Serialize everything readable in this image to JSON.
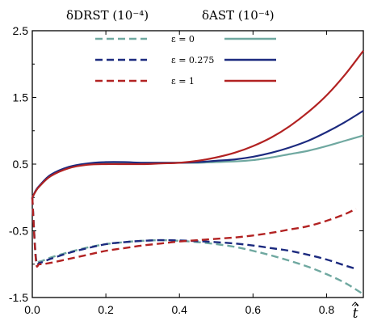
{
  "chart_data": {
    "type": "line",
    "title": "",
    "column_headers": {
      "dashed": "δDRST (10⁻⁴)",
      "solid": "δAST (10⁻⁴)"
    },
    "xlabel": "t̂",
    "ylabel": "",
    "xlim": [
      0.0,
      0.9
    ],
    "ylim": [
      -1.5,
      2.5
    ],
    "x_ticks": [
      "0.0",
      "0.2",
      "0.4",
      "0.6",
      "0.8"
    ],
    "y_ticks": [
      "2.5",
      "1.5",
      "0.5",
      "-0.5",
      "-1.5"
    ],
    "grid": false,
    "legend_position": "top-center",
    "legend": [
      {
        "label": "ε = 0",
        "color": "#6fa8a0"
      },
      {
        "label": "ε = 0.275",
        "color": "#1c2a7f"
      },
      {
        "label": "ε = 1",
        "color": "#b22222"
      }
    ],
    "series": [
      {
        "name": "δDRST ε = 0",
        "style": "dashed",
        "color": "#6fa8a0",
        "x": [
          0.0,
          0.01,
          0.02,
          0.05,
          0.1,
          0.15,
          0.2,
          0.25,
          0.3,
          0.35,
          0.4,
          0.45,
          0.5,
          0.55,
          0.6,
          0.65,
          0.7,
          0.75,
          0.8,
          0.85,
          0.9
        ],
        "y": [
          0.0,
          -0.9,
          -0.96,
          -0.9,
          -0.82,
          -0.75,
          -0.7,
          -0.67,
          -0.65,
          -0.64,
          -0.65,
          -0.67,
          -0.7,
          -0.74,
          -0.8,
          -0.87,
          -0.95,
          -1.04,
          -1.15,
          -1.28,
          -1.45
        ]
      },
      {
        "name": "δDRST ε = 0.275",
        "style": "dashed",
        "color": "#1c2a7f",
        "x": [
          0.0,
          0.01,
          0.02,
          0.05,
          0.1,
          0.15,
          0.2,
          0.25,
          0.3,
          0.35,
          0.4,
          0.45,
          0.5,
          0.55,
          0.6,
          0.65,
          0.7,
          0.75,
          0.8,
          0.85,
          0.88
        ],
        "y": [
          0.0,
          -0.93,
          -0.98,
          -0.92,
          -0.83,
          -0.76,
          -0.7,
          -0.67,
          -0.65,
          -0.64,
          -0.645,
          -0.655,
          -0.67,
          -0.69,
          -0.72,
          -0.76,
          -0.8,
          -0.86,
          -0.93,
          -1.02,
          -1.07
        ]
      },
      {
        "name": "δDRST ε = 1",
        "style": "dashed",
        "color": "#b22222",
        "x": [
          0.0,
          0.01,
          0.02,
          0.05,
          0.1,
          0.15,
          0.2,
          0.25,
          0.3,
          0.35,
          0.4,
          0.45,
          0.5,
          0.55,
          0.6,
          0.65,
          0.7,
          0.75,
          0.8,
          0.85,
          0.88
        ],
        "y": [
          0.0,
          -0.95,
          -1.0,
          -0.98,
          -0.92,
          -0.86,
          -0.8,
          -0.76,
          -0.72,
          -0.69,
          -0.66,
          -0.64,
          -0.62,
          -0.6,
          -0.57,
          -0.53,
          -0.48,
          -0.43,
          -0.35,
          -0.25,
          -0.17
        ]
      },
      {
        "name": "δAST ε = 0",
        "style": "solid",
        "color": "#6fa8a0",
        "x": [
          0.0,
          0.01,
          0.02,
          0.05,
          0.1,
          0.15,
          0.2,
          0.25,
          0.3,
          0.35,
          0.4,
          0.45,
          0.5,
          0.55,
          0.6,
          0.65,
          0.7,
          0.75,
          0.8,
          0.85,
          0.9
        ],
        "y": [
          0.0,
          0.1,
          0.17,
          0.32,
          0.45,
          0.5,
          0.52,
          0.52,
          0.52,
          0.52,
          0.52,
          0.52,
          0.53,
          0.54,
          0.56,
          0.6,
          0.65,
          0.7,
          0.77,
          0.85,
          0.93
        ]
      },
      {
        "name": "δAST ε = 0.275",
        "style": "solid",
        "color": "#1c2a7f",
        "x": [
          0.0,
          0.01,
          0.02,
          0.05,
          0.1,
          0.15,
          0.2,
          0.25,
          0.3,
          0.35,
          0.4,
          0.45,
          0.5,
          0.55,
          0.6,
          0.65,
          0.7,
          0.75,
          0.8,
          0.85,
          0.9
        ],
        "y": [
          0.0,
          0.11,
          0.18,
          0.34,
          0.46,
          0.51,
          0.53,
          0.53,
          0.52,
          0.52,
          0.52,
          0.53,
          0.55,
          0.57,
          0.61,
          0.67,
          0.75,
          0.85,
          0.98,
          1.13,
          1.3
        ]
      },
      {
        "name": "δAST ε = 1",
        "style": "solid",
        "color": "#b22222",
        "x": [
          0.0,
          0.01,
          0.02,
          0.05,
          0.1,
          0.15,
          0.2,
          0.25,
          0.3,
          0.35,
          0.4,
          0.45,
          0.5,
          0.55,
          0.6,
          0.65,
          0.7,
          0.75,
          0.8,
          0.85,
          0.9
        ],
        "y": [
          0.0,
          0.1,
          0.17,
          0.32,
          0.44,
          0.49,
          0.5,
          0.5,
          0.5,
          0.51,
          0.52,
          0.55,
          0.6,
          0.67,
          0.77,
          0.9,
          1.07,
          1.28,
          1.53,
          1.84,
          2.2
        ]
      }
    ]
  }
}
